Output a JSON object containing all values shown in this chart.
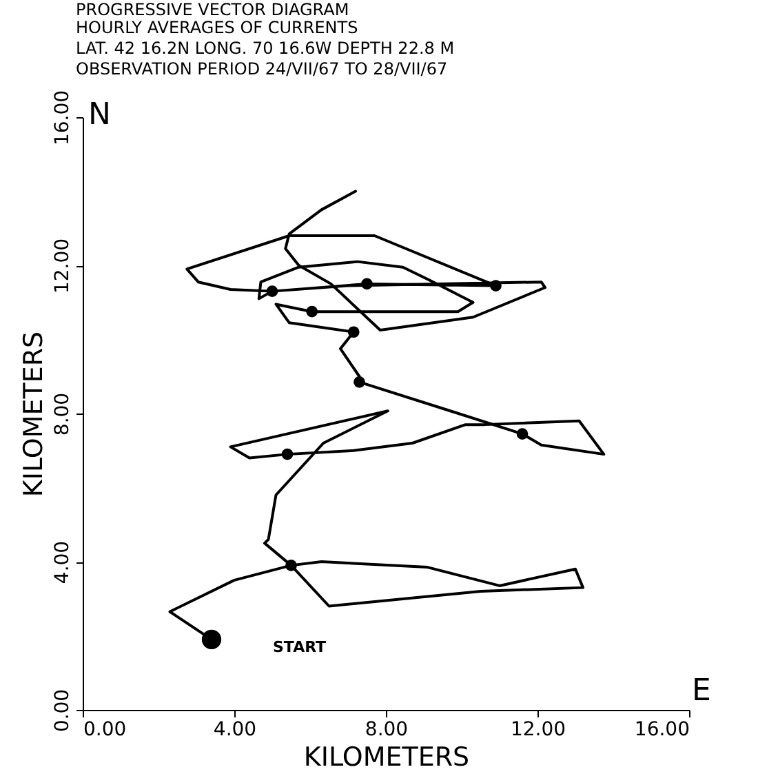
{
  "chart_data": {
    "type": "line",
    "title": "PROGRESSIVE VECTOR DIAGRAM",
    "subtitle": "HOURLY AVERAGES OF CURRENTS",
    "annotations": [
      "LAT. 42 16.2N  LONG. 70 16.6W  DEPTH 22.8 M",
      "OBSERVATION PERIOD 24/VII/67  TO 28/VII/67",
      "N",
      "E",
      "START"
    ],
    "xlabel": "KILOMETERS",
    "ylabel": "KILOMETERS",
    "xlim": [
      0,
      16
    ],
    "ylim": [
      0,
      16
    ],
    "xticks": [
      {
        "value": 0,
        "label": "0.00"
      },
      {
        "value": 4,
        "label": "4.00"
      },
      {
        "value": 8,
        "label": "8.00"
      },
      {
        "value": 12,
        "label": "12.00"
      },
      {
        "value": 16,
        "label": "16.00"
      }
    ],
    "yticks": [
      {
        "value": 0,
        "label": "0.00"
      },
      {
        "value": 4,
        "label": "4.00"
      },
      {
        "value": 8,
        "label": "8.00"
      },
      {
        "value": 12,
        "label": "12.00"
      },
      {
        "value": 16,
        "label": "16.00"
      }
    ],
    "grid": false,
    "line_style": "solid",
    "series": [
      {
        "color": "#000000",
        "marker": "none",
        "x": [
          3.4,
          2.3,
          4.0,
          5.5,
          6.3,
          9.1,
          11.0,
          13.0,
          13.2,
          10.5,
          6.5,
          5.5,
          4.8,
          4.9,
          5.1,
          6.35,
          8.05,
          3.9,
          4.4,
          5.4,
          7.15,
          8.7,
          10.1,
          10.6,
          13.1,
          13.75,
          12.1,
          11.6,
          9.7,
          7.3,
          7.3,
          6.8,
          7.15,
          5.45,
          5.1,
          6.05,
          9.9,
          10.3,
          9.15,
          8.45,
          7.25,
          5.7,
          4.7,
          4.65,
          5.0,
          7.5,
          10.9,
          7.7,
          5.45,
          2.75,
          3.05,
          3.9,
          5.0,
          7.0,
          12.1,
          12.2,
          10.3,
          7.85,
          6.55,
          5.7,
          5.35,
          5.45,
          6.3,
          7.2
        ],
        "values": [
          1.9,
          2.65,
          3.5,
          3.9,
          4.0,
          3.85,
          3.35,
          3.8,
          3.3,
          3.2,
          2.8,
          3.9,
          4.5,
          4.6,
          5.8,
          7.2,
          8.07,
          7.1,
          6.8,
          6.9,
          7.0,
          7.2,
          7.7,
          7.7,
          7.8,
          6.9,
          7.15,
          7.45,
          8.07,
          8.85,
          9.0,
          9.75,
          10.2,
          10.45,
          10.95,
          10.75,
          10.75,
          11.0,
          11.6,
          11.95,
          12.1,
          11.95,
          11.55,
          11.1,
          11.3,
          11.5,
          11.45,
          12.8,
          12.8,
          11.9,
          11.55,
          11.35,
          11.3,
          11.45,
          11.55,
          11.4,
          10.6,
          10.25,
          11.5,
          12.0,
          12.45,
          12.85,
          13.5,
          14.0
        ]
      },
      {
        "type": "scatter",
        "color": "#000000",
        "marker": "circle",
        "x": [
          5.5,
          5.4,
          7.3,
          7.15,
          6.05,
          5.0,
          7.5,
          10.9,
          11.6
        ],
        "values": [
          3.9,
          6.9,
          8.85,
          10.2,
          10.75,
          11.3,
          11.5,
          11.45,
          7.45
        ]
      },
      {
        "type": "scatter",
        "color": "#000000",
        "marker": "circle",
        "x": [
          3.4
        ],
        "values": [
          1.9
        ]
      }
    ]
  }
}
